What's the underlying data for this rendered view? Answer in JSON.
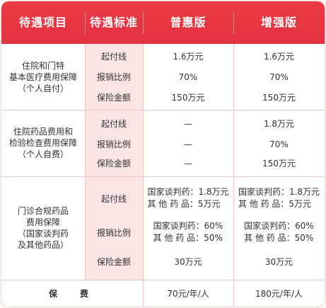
{
  "header": {
    "col1": "待遇项目",
    "col2": "待遇标准",
    "col3": "普惠版",
    "col4": "增强版"
  },
  "sections": [
    {
      "item_lines": [
        "住院和门特",
        "基本医疗费用保障",
        "（个人自付）"
      ],
      "rows": [
        {
          "label": "起付线",
          "basic": "1.6万元",
          "enhanced": "1.6万元"
        },
        {
          "label": "报销比例",
          "basic": "70%",
          "enhanced": "70%"
        },
        {
          "label": "保险金额",
          "basic": "150万元",
          "enhanced": "150万元"
        }
      ]
    },
    {
      "item_lines": [
        "住院药品费用和",
        "检验检查费用保障",
        "（个人自费）"
      ],
      "rows": [
        {
          "label": "起付线",
          "basic": "—",
          "enhanced": "1.8万元"
        },
        {
          "label": "报销比例",
          "basic": "—",
          "enhanced": "70%"
        },
        {
          "label": "保险金额",
          "basic": "—",
          "enhanced": "150万元"
        }
      ]
    },
    {
      "item_lines": [
        "门诊合规药品",
        "费用保障",
        "（国家谈判药",
        "及其他药品）"
      ],
      "rows": [
        {
          "label": "起付线",
          "basic_lines": [
            "国家谈判药：1.8万元",
            "其 他 药 品：5万元"
          ],
          "enhanced_lines": [
            "国家谈判药：1.8万元",
            "其 他 药 品：5万元"
          ]
        },
        {
          "label": "报销比例",
          "basic_lines": [
            "国家谈判药：60%",
            "其 他 药 品：50%"
          ],
          "enhanced_lines": [
            "国家谈判药：60%",
            "其 他 药 品：50%"
          ]
        },
        {
          "label": "保险金额",
          "basic": "30万元",
          "enhanced": "30万元"
        }
      ]
    }
  ],
  "fee": {
    "label": "保　费",
    "basic": "70元/年/人",
    "enhanced": "180元/年/人"
  },
  "colors": {
    "header": "#e23340",
    "band": "#fce5e4",
    "line": "#f1c9c6"
  }
}
